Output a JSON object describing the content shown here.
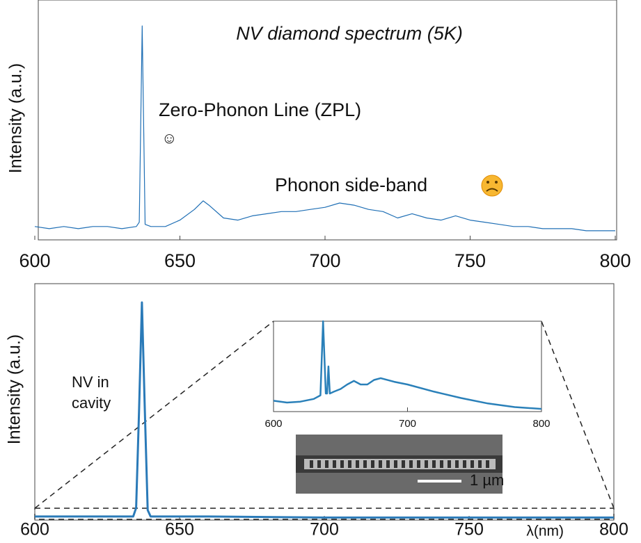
{
  "chart_data": [
    {
      "type": "line",
      "title": "NV diamond spectrum (5K)",
      "y_label": "Intensity (a.u.)",
      "annotations": [
        "Zero-Phonon Line (ZPL)",
        "☺",
        "Phonon side-band"
      ],
      "color": "#1f6fb5",
      "x": [
        600,
        605,
        610,
        615,
        620,
        625,
        630,
        635,
        636,
        637,
        638,
        640,
        645,
        650,
        655,
        658,
        660,
        665,
        670,
        675,
        680,
        685,
        690,
        695,
        700,
        705,
        710,
        715,
        720,
        725,
        730,
        735,
        740,
        745,
        750,
        755,
        760,
        765,
        770,
        775,
        780,
        785,
        790,
        795,
        800
      ],
      "values": [
        0.03,
        0.02,
        0.03,
        0.02,
        0.03,
        0.03,
        0.02,
        0.03,
        0.05,
        0.97,
        0.04,
        0.03,
        0.03,
        0.06,
        0.11,
        0.15,
        0.13,
        0.07,
        0.06,
        0.08,
        0.09,
        0.1,
        0.1,
        0.11,
        0.12,
        0.14,
        0.13,
        0.11,
        0.1,
        0.07,
        0.09,
        0.07,
        0.06,
        0.08,
        0.06,
        0.05,
        0.04,
        0.03,
        0.03,
        0.02,
        0.02,
        0.02,
        0.01,
        0.01,
        0.01
      ],
      "xlim": [
        600,
        800
      ],
      "ylim": [
        0,
        1
      ],
      "xticks": [
        600,
        650,
        700,
        750,
        800
      ]
    },
    {
      "type": "line",
      "y_label": "Intensity (a.u.)",
      "x_label": "λ(nm)",
      "annotations": [
        "NV in",
        "cavity"
      ],
      "color": "#2a7ab8",
      "x": [
        600,
        620,
        630,
        634,
        635,
        636,
        637,
        638,
        639,
        640,
        660,
        700,
        750,
        800
      ],
      "values": [
        0.01,
        0.01,
        0.01,
        0.01,
        0.05,
        0.5,
        1.0,
        0.5,
        0.04,
        0.01,
        0.01,
        0.005,
        0.005,
        0.005
      ],
      "xlim": [
        600,
        800
      ],
      "ylim": [
        0,
        1
      ],
      "xticks": [
        600,
        650,
        700,
        750,
        800
      ]
    },
    {
      "type": "line",
      "annotations": [
        "1 µm"
      ],
      "color": "#2a80b9",
      "x": [
        600,
        610,
        620,
        630,
        635,
        637,
        639,
        640,
        641,
        642,
        645,
        650,
        655,
        660,
        665,
        670,
        675,
        680,
        690,
        700,
        720,
        740,
        760,
        780,
        800
      ],
      "values": [
        0.12,
        0.1,
        0.11,
        0.14,
        0.18,
        1.0,
        0.2,
        0.2,
        0.5,
        0.2,
        0.22,
        0.25,
        0.3,
        0.34,
        0.3,
        0.3,
        0.35,
        0.37,
        0.33,
        0.3,
        0.22,
        0.15,
        0.09,
        0.05,
        0.03
      ],
      "xlim": [
        600,
        800
      ],
      "ylim": [
        0,
        1
      ],
      "xticks": [
        600,
        700,
        800
      ]
    }
  ]
}
